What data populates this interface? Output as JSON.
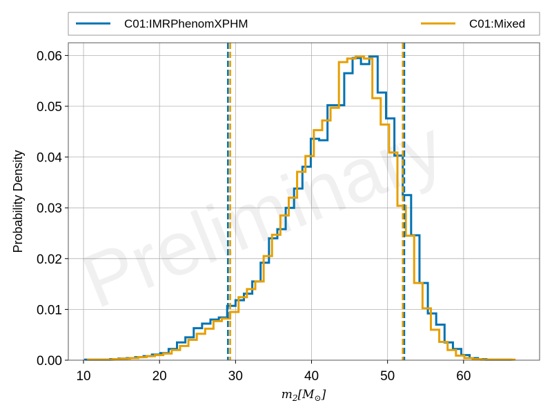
{
  "chart_data": {
    "type": "histogram",
    "xlabel": "m_2[M_⊙]",
    "ylabel": "Probability Density",
    "xlim": [
      8,
      70
    ],
    "ylim": [
      0,
      0.0625
    ],
    "x_ticks": [
      10,
      20,
      30,
      40,
      50,
      60
    ],
    "y_ticks": [
      0.0,
      0.01,
      0.02,
      0.03,
      0.04,
      0.05,
      0.06
    ],
    "y_tick_labels": [
      "0.00",
      "0.01",
      "0.02",
      "0.03",
      "0.04",
      "0.05",
      "0.06"
    ],
    "grid": true,
    "legend_position": "top",
    "watermark": "Preliminary",
    "series": [
      {
        "name": "C01:IMRPhenomXPHM",
        "color": "#0072b2",
        "bin_edges": [
          10.2,
          11.3,
          12.4,
          13.5,
          14.6,
          15.7,
          16.8,
          17.9,
          19.0,
          20.1,
          21.2,
          22.3,
          23.4,
          24.5,
          25.6,
          26.7,
          27.8,
          28.9,
          30.0,
          31.1,
          32.2,
          33.3,
          34.4,
          35.5,
          36.6,
          37.7,
          38.8,
          39.9,
          41.0,
          42.1,
          43.2,
          44.3,
          45.4,
          46.5,
          47.6,
          48.7,
          49.8,
          50.9,
          52.0,
          53.1,
          54.2,
          55.3,
          56.4,
          57.5,
          58.6,
          59.7,
          60.8,
          61.9,
          63.0,
          64.1,
          65.2,
          66.3
        ],
        "density": [
          0.0001,
          0.0001,
          0.0001,
          0.0002,
          0.0003,
          0.0004,
          0.0006,
          0.0008,
          0.0011,
          0.0014,
          0.0022,
          0.0035,
          0.0045,
          0.0063,
          0.0072,
          0.008,
          0.0084,
          0.0107,
          0.0118,
          0.0131,
          0.0155,
          0.0192,
          0.024,
          0.0258,
          0.03,
          0.0338,
          0.0381,
          0.0436,
          0.0433,
          0.0502,
          0.0502,
          0.0565,
          0.0595,
          0.0583,
          0.0598,
          0.0527,
          0.0476,
          0.0403,
          0.0325,
          0.0246,
          0.0152,
          0.0092,
          0.007,
          0.0035,
          0.0022,
          0.001,
          0.0004,
          0.0002,
          0.0001,
          0.0001,
          0.0001
        ]
      },
      {
        "name": "C01:Mixed",
        "color": "#e69f00",
        "bin_edges": [
          10.6,
          11.7,
          12.8,
          13.9,
          15.0,
          16.1,
          17.2,
          18.3,
          19.4,
          20.5,
          21.6,
          22.7,
          23.8,
          24.9,
          26.0,
          27.1,
          28.2,
          29.3,
          30.4,
          31.5,
          32.6,
          33.7,
          34.8,
          35.9,
          37.0,
          38.1,
          39.2,
          40.3,
          41.4,
          42.5,
          43.6,
          44.7,
          45.8,
          46.9,
          48.0,
          49.1,
          50.2,
          51.3,
          52.4,
          53.5,
          54.6,
          55.7,
          56.8,
          57.9,
          59.0,
          60.1,
          61.2,
          62.3,
          63.4,
          64.5,
          65.6,
          66.7
        ],
        "density": [
          0.0001,
          0.0001,
          0.0001,
          0.0002,
          0.0003,
          0.0004,
          0.0006,
          0.0008,
          0.001,
          0.0013,
          0.002,
          0.0028,
          0.004,
          0.0052,
          0.0062,
          0.0077,
          0.0082,
          0.0095,
          0.0124,
          0.014,
          0.0155,
          0.0205,
          0.0247,
          0.0285,
          0.032,
          0.0371,
          0.0402,
          0.0453,
          0.0472,
          0.0497,
          0.0587,
          0.0594,
          0.0598,
          0.0594,
          0.0516,
          0.0464,
          0.0409,
          0.0304,
          0.0245,
          0.0152,
          0.0102,
          0.006,
          0.0036,
          0.002,
          0.0009,
          0.0004,
          0.0002,
          0.0001,
          0.0001,
          0.0001,
          0.0001
        ]
      }
    ],
    "vertical_lines": [
      {
        "series": "C01:IMRPhenomXPHM",
        "x": 29.0
      },
      {
        "series": "C01:Mixed",
        "x": 29.3
      },
      {
        "series": "C01:IMRPhenomXPHM",
        "x": 52.2
      },
      {
        "series": "C01:Mixed",
        "x": 52.0
      }
    ]
  }
}
